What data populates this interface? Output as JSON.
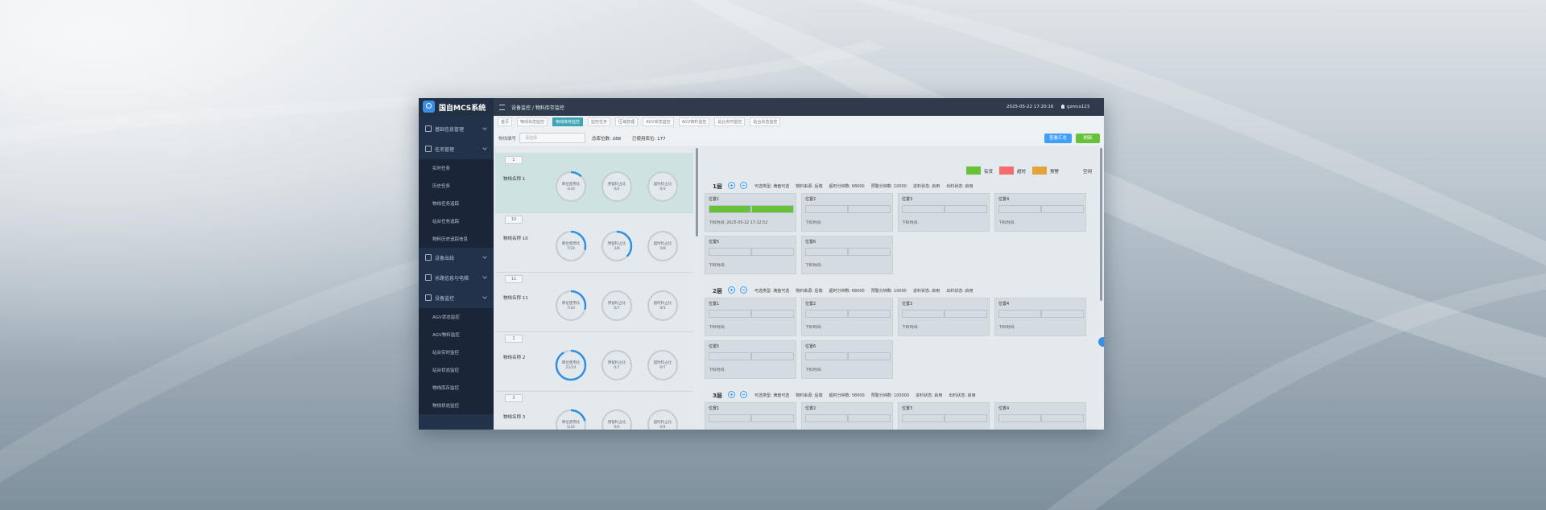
{
  "header": {
    "logo": "国自MCS系统",
    "breadcrumb": "设备监控 / 物料库存监控",
    "datetime": "2025-05-22 17:20:16",
    "user": "gzmcs123"
  },
  "sidebar": [
    {
      "label": "基础信息管理"
    },
    {
      "label": "任务管理",
      "children": [
        "实时任务",
        "历史任务",
        "物线任务追踪",
        "站台任务追踪",
        "物料历史追踪信息"
      ]
    },
    {
      "label": "设备出线"
    },
    {
      "label": "水路信息与电梯"
    },
    {
      "label": "设备监控",
      "children": [
        "AGV状态监控",
        "AGV物料监控",
        "站台实时监控",
        "站台状态监控",
        "物线库存监控",
        "物线状态监控"
      ]
    }
  ],
  "tabs": {
    "items": [
      "首页",
      "物线状态监控",
      "物线库存监控",
      "监控任务",
      "区域管理",
      "AGV状态监控",
      "AGV物料监控",
      "站台实时监控",
      "站台状态监控"
    ],
    "active": 2
  },
  "filter": {
    "label": "物线编号",
    "placeholder": "请选择",
    "total": "总库位数: 288",
    "used": "已使用库位: 177",
    "summary_button": "查看汇总",
    "refresh_button": "刷新"
  },
  "lines": [
    {
      "badge": "1",
      "name": "物线名称 1",
      "gauges": [
        {
          "title": "库位使用比",
          "text": "3/24",
          "used": 3,
          "total": 24
        },
        {
          "title": "预留料占比",
          "text": "0/2",
          "used": 0,
          "total": 2
        },
        {
          "title": "超时料占比",
          "text": "0/3",
          "used": 0,
          "total": 3
        }
      ]
    },
    {
      "badge": "10",
      "name": "物线名称 10",
      "gauges": [
        {
          "title": "库位使用比",
          "text": "7/24",
          "used": 7,
          "total": 24
        },
        {
          "title": "预留料占比",
          "text": "3/8",
          "used": 3,
          "total": 8
        },
        {
          "title": "超时料占比",
          "text": "0/8",
          "used": 0,
          "total": 8
        }
      ]
    },
    {
      "badge": "11",
      "name": "物线名称 11",
      "gauges": [
        {
          "title": "库位使用比",
          "text": "7/24",
          "used": 7,
          "total": 24
        },
        {
          "title": "预留料占比",
          "text": "0/7",
          "used": 0,
          "total": 7
        },
        {
          "title": "超时料占比",
          "text": "0/3",
          "used": 0,
          "total": 3
        }
      ]
    },
    {
      "badge": "2",
      "name": "物线名称 2",
      "gauges": [
        {
          "title": "库位使用比",
          "text": "22/24",
          "used": 22,
          "total": 24
        },
        {
          "title": "预留料占比",
          "text": "0/7",
          "used": 0,
          "total": 7
        },
        {
          "title": "超时料占比",
          "text": "0/7",
          "used": 0,
          "total": 7
        }
      ]
    },
    {
      "badge": "3",
      "name": "物线名称 3",
      "gauges": [
        {
          "title": "库位使用比",
          "text": "5/24",
          "used": 5,
          "total": 24
        },
        {
          "title": "预留料占比",
          "text": "0/4",
          "used": 0,
          "total": 4
        },
        {
          "title": "超时料占比",
          "text": "0/4",
          "used": 0,
          "total": 4
        }
      ]
    }
  ],
  "legend": [
    {
      "label": "有货",
      "color": "#67c23a"
    },
    {
      "label": "超时",
      "color": "#f56c6c"
    },
    {
      "label": "预警",
      "color": "#e6a23c"
    },
    {
      "label": "空闲",
      "color": "#e4e7ed"
    }
  ],
  "layers": [
    {
      "name": "1层",
      "info": [
        "可选类型: 满盘可选",
        "物料来源: 后端",
        "超时分钟数: 68000",
        "预警分钟数: 10000",
        "进料状态: 启用",
        "出料状态: 启用"
      ],
      "slots": [
        {
          "name": "位置1",
          "filled": true,
          "time": "下料时间: 2025-05-22 17:12:52"
        },
        {
          "name": "位置2",
          "filled": false,
          "time": "下料时间:"
        },
        {
          "name": "位置3",
          "filled": false,
          "time": "下料时间:"
        },
        {
          "name": "位置4",
          "filled": false,
          "time": "下料时间:"
        },
        {
          "name": "位置5",
          "filled": false,
          "time": "下料时间:"
        },
        {
          "name": "位置6",
          "filled": false,
          "time": "下料时间:"
        }
      ]
    },
    {
      "name": "2层",
      "info": [
        "可选类型: 满盘可选",
        "物料来源: 后端",
        "超时分钟数: 68000",
        "预警分钟数: 10000",
        "进料状态: 启用",
        "出料状态: 启用"
      ],
      "slots": [
        {
          "name": "位置1",
          "filled": false,
          "time": "下料时间:"
        },
        {
          "name": "位置2",
          "filled": false,
          "time": "下料时间:"
        },
        {
          "name": "位置3",
          "filled": false,
          "time": "下料时间:"
        },
        {
          "name": "位置4",
          "filled": false,
          "time": "下料时间:"
        },
        {
          "name": "位置5",
          "filled": false,
          "time": "下料时间:"
        },
        {
          "name": "位置6",
          "filled": false,
          "time": "下料时间:"
        }
      ]
    },
    {
      "name": "3层",
      "info": [
        "可选类型: 满盘可选",
        "物料来源: 后端",
        "超时分钟数: 58000",
        "预警分钟数: 100000",
        "进料状态: 启用",
        "出料状态: 启用"
      ],
      "slots": [
        {
          "name": "位置1",
          "filled": false,
          "time": "下料时间:"
        },
        {
          "name": "位置2",
          "filled": false,
          "time": "下料时间:"
        },
        {
          "name": "位置3",
          "filled": false,
          "time": "下料时间:"
        },
        {
          "name": "位置4",
          "filled": false,
          "time": "下料时间:"
        }
      ]
    }
  ]
}
